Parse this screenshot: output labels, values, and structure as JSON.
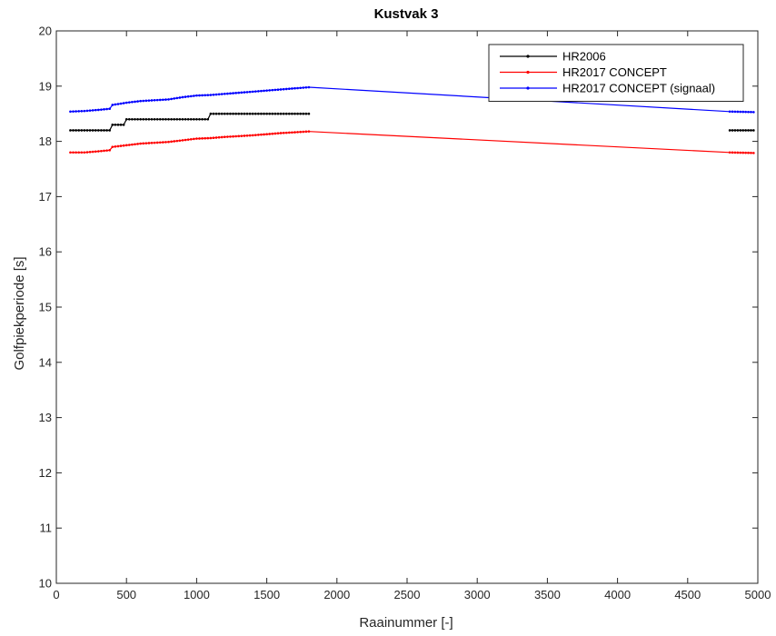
{
  "chart_data": {
    "type": "line",
    "title": "Kustvak 3",
    "xlabel": "Raainummer [-]",
    "ylabel": "Golfpiekperiode [s]",
    "xlim": [
      0,
      5000
    ],
    "ylim": [
      10,
      20
    ],
    "xticks": [
      0,
      500,
      1000,
      1500,
      2000,
      2500,
      3000,
      3500,
      4000,
      4500,
      5000
    ],
    "yticks": [
      10,
      11,
      12,
      13,
      14,
      15,
      16,
      17,
      18,
      19,
      20
    ],
    "grid": false,
    "legend_position": "top-right",
    "series": [
      {
        "name": "HR2006",
        "color": "#000000",
        "segments": [
          [
            [
              100,
              18.2
            ],
            [
              380,
              18.2
            ],
            [
              400,
              18.3
            ],
            [
              480,
              18.3
            ],
            [
              500,
              18.4
            ],
            [
              1080,
              18.4
            ],
            [
              1100,
              18.5
            ],
            [
              1800,
              18.5
            ]
          ],
          [
            [
              4800,
              18.2
            ],
            [
              4970,
              18.2
            ]
          ]
        ]
      },
      {
        "name": "HR2017 CONCEPT",
        "color": "#ff0000",
        "segments": [
          [
            [
              100,
              17.8
            ],
            [
              200,
              17.8
            ],
            [
              300,
              17.82
            ],
            [
              380,
              17.84
            ],
            [
              400,
              17.9
            ],
            [
              500,
              17.93
            ],
            [
              600,
              17.96
            ],
            [
              800,
              17.99
            ],
            [
              900,
              18.02
            ],
            [
              1000,
              18.05
            ],
            [
              1100,
              18.06
            ],
            [
              1200,
              18.08
            ],
            [
              1400,
              18.11
            ],
            [
              1600,
              18.15
            ],
            [
              1800,
              18.18
            ],
            [
              4800,
              17.8
            ],
            [
              4970,
              17.79
            ]
          ]
        ]
      },
      {
        "name": "HR2017 CONCEPT (signaal)",
        "color": "#0000ff",
        "segments": [
          [
            [
              100,
              18.54
            ],
            [
              200,
              18.55
            ],
            [
              300,
              18.57
            ],
            [
              380,
              18.59
            ],
            [
              400,
              18.66
            ],
            [
              500,
              18.7
            ],
            [
              600,
              18.73
            ],
            [
              800,
              18.76
            ],
            [
              900,
              18.8
            ],
            [
              1000,
              18.83
            ],
            [
              1100,
              18.84
            ],
            [
              1200,
              18.86
            ],
            [
              1400,
              18.9
            ],
            [
              1600,
              18.94
            ],
            [
              1800,
              18.98
            ],
            [
              4800,
              18.54
            ],
            [
              4970,
              18.53
            ]
          ]
        ]
      }
    ]
  }
}
